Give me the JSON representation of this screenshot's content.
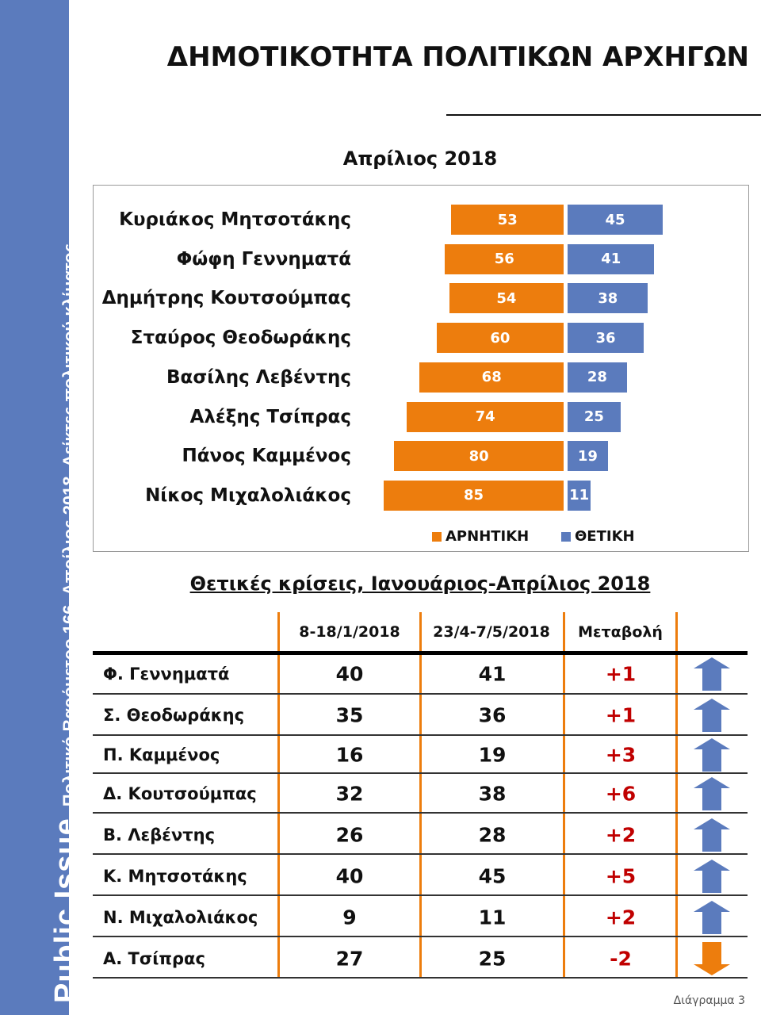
{
  "sidebar": {
    "brand": "Public Issue",
    "subtitle": "Πολιτικό Βαρόμετρο 166, Απρίλιος 2018. Δείκτες πολιτικού κλίματος",
    "color": "#5b7bbd"
  },
  "header": {
    "title": "ΔΗΜΟΤΙΚΟΤΗΤΑ ΠΟΛΙΤΙΚΩΝ ΑΡΧΗΓΩΝ"
  },
  "chart_data": {
    "type": "bar",
    "orientation": "horizontal-diverging",
    "title": "Απρίλιος 2018",
    "categories": [
      "Κυριάκος Μητσοτάκης",
      "Φώφη Γεννηματά",
      "Δημήτρης Κουτσούμπας",
      "Σταύρος Θεοδωράκης",
      "Βασίλης Λεβέντης",
      "Αλέξης Τσίπρας",
      "Πάνος Καμμένος",
      "Νίκος Μιχαλολιάκος"
    ],
    "series": [
      {
        "name": "ΑΡΝΗΤΙΚΗ",
        "color": "#ed7d0d",
        "values": [
          53,
          56,
          54,
          60,
          68,
          74,
          80,
          85
        ]
      },
      {
        "name": "ΘΕΤΙΚΗ",
        "color": "#5b7bbd",
        "values": [
          45,
          41,
          38,
          36,
          28,
          25,
          19,
          11
        ]
      }
    ],
    "legend": "bottom",
    "data_labels": true
  },
  "table": {
    "title": "Θετικές κρίσεις, Ιανουάριος-Απρίλιος 2018",
    "headers": [
      "8-18/1/2018",
      "23/4-7/5/2018",
      "Μεταβολή"
    ],
    "rows": [
      {
        "name": "Φ. Γεννηματά",
        "a": "40",
        "b": "41",
        "change": "+1",
        "trend": "up"
      },
      {
        "name": "Σ. Θεοδωράκης",
        "a": "35",
        "b": "36",
        "change": "+1",
        "trend": "up"
      },
      {
        "name": "Π. Καμμένος",
        "a": "16",
        "b": "19",
        "change": "+3",
        "trend": "up"
      },
      {
        "name": "Δ. Κουτσούμπας",
        "a": "32",
        "b": "38",
        "change": "+6",
        "trend": "up"
      },
      {
        "name": "Β. Λεβέντης",
        "a": "26",
        "b": "28",
        "change": "+2",
        "trend": "up"
      },
      {
        "name": "Κ. Μητσοτάκης",
        "a": "40",
        "b": "45",
        "change": "+5",
        "trend": "up"
      },
      {
        "name": "Ν. Μιχαλολιάκος",
        "a": "9",
        "b": "11",
        "change": "+2",
        "trend": "up"
      },
      {
        "name": "Α. Τσίπρας",
        "a": "27",
        "b": "25",
        "change": "-2",
        "trend": "down"
      }
    ],
    "up_color": "#5b7bbd",
    "down_color": "#ed7d0d",
    "change_color": "#c00000"
  },
  "footer": {
    "label": "Διάγραμμα 3"
  }
}
